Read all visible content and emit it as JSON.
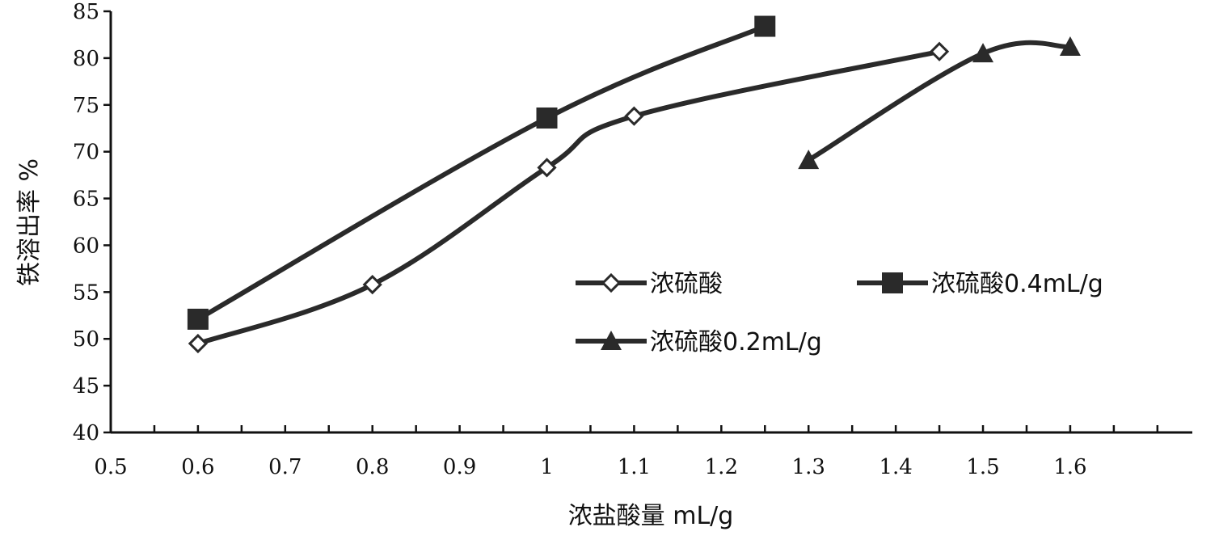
{
  "chart_data": {
    "type": "line",
    "xlabel": "浓盐酸量 mL/g",
    "ylabel": "铁溶出率 %",
    "x_ticks": [
      0.5,
      0.6,
      0.7,
      0.8,
      0.9,
      1.0,
      1.1,
      1.2,
      1.3,
      1.4,
      1.5,
      1.6
    ],
    "x_tick_labels": [
      "0.5",
      "0.6",
      "0.7",
      "0.8",
      "0.9",
      "1",
      "1.1",
      "1.2",
      "1.3",
      "1.4",
      "1.5",
      "1.6"
    ],
    "y_ticks": [
      40,
      45,
      50,
      55,
      60,
      65,
      70,
      75,
      80,
      85
    ],
    "y_tick_labels": [
      "40",
      "45",
      "50",
      "55",
      "60",
      "65",
      "70",
      "75",
      "80",
      "85"
    ],
    "xlim": [
      0.5,
      1.74
    ],
    "ylim": [
      40,
      85
    ],
    "grid": false,
    "legend": "center-right",
    "series": [
      {
        "name": "浓硫酸",
        "marker": "diamond-open",
        "x": [
          0.6,
          0.8,
          1.0,
          1.1,
          1.45
        ],
        "y": [
          49.5,
          55.8,
          68.3,
          73.8,
          80.7
        ]
      },
      {
        "name": "浓硫酸0.4mL/g",
        "marker": "square",
        "x": [
          0.6,
          1.0,
          1.25
        ],
        "y": [
          52.1,
          73.6,
          83.4
        ]
      },
      {
        "name": "浓硫酸0.2mL/g",
        "marker": "triangle",
        "x": [
          1.3,
          1.5,
          1.6
        ],
        "y": [
          69.1,
          80.5,
          81.2
        ]
      }
    ]
  },
  "colors": {
    "line": "#2a2a2a",
    "axis": "#111111"
  }
}
